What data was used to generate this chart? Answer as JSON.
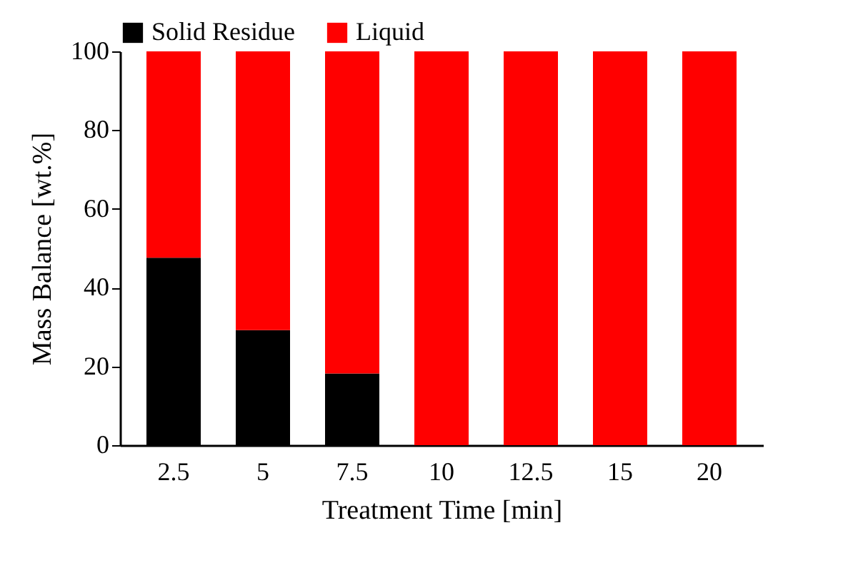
{
  "chart_data": {
    "type": "bar",
    "stacked": true,
    "xlabel": "Treatment Time [min]",
    "ylabel": "Mass Balance [wt.%]",
    "categories": [
      "2.5",
      "5",
      "7.5",
      "10",
      "12.5",
      "15",
      "20"
    ],
    "series": [
      {
        "name": "Solid Residue",
        "color": "#000000",
        "values": [
          47.6,
          29.2,
          18.2,
          0,
          0,
          0,
          0
        ]
      },
      {
        "name": "Liquid",
        "color": "#ff0000",
        "values": [
          52.4,
          70.8,
          81.8,
          100,
          100,
          100,
          100
        ]
      }
    ],
    "ylim": [
      0,
      100
    ],
    "yticks": [
      0,
      20,
      40,
      60,
      80,
      100
    ],
    "grid": false,
    "legend": "top"
  }
}
